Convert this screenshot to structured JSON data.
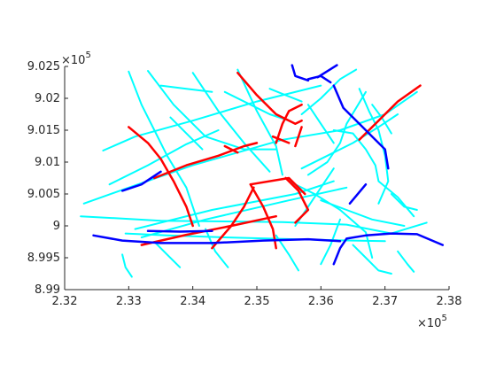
{
  "chart_data": {
    "type": "line",
    "title": "",
    "xlabel": "",
    "ylabel": "",
    "xlim": [
      232000,
      238000
    ],
    "ylim": [
      899000,
      902500
    ],
    "x_ticks": [
      232000,
      233000,
      234000,
      235000,
      236000,
      237000,
      238000
    ],
    "y_ticks": [
      899000,
      899500,
      900000,
      900500,
      901000,
      901500,
      902000,
      902500
    ],
    "x_tick_labels": [
      "2.32",
      "2.33",
      "2.34",
      "2.35",
      "2.36",
      "2.37",
      "2.38"
    ],
    "y_tick_labels": [
      "8.99",
      "8.995",
      "9",
      "9.005",
      "9.01",
      "9.015",
      "9.02",
      "9.025"
    ],
    "x_multiplier": {
      "base": "×10",
      "exp": "5"
    },
    "y_multiplier": {
      "base": "×10",
      "exp": "5"
    },
    "grid": false,
    "box": "open",
    "series": [
      {
        "color": "#00FFFF",
        "lines": [
          [
            [
              232250,
              900150
            ],
            [
              233500,
              900080
            ],
            [
              235400,
              900060
            ],
            [
              236400,
              900020
            ],
            [
              237100,
              899880
            ],
            [
              237650,
              900050
            ]
          ],
          [
            [
              232950,
              899880
            ],
            [
              233600,
              899850
            ],
            [
              234500,
              899820
            ],
            [
              235600,
              899790
            ],
            [
              236500,
              899770
            ],
            [
              237000,
              899760
            ]
          ],
          [
            [
              233100,
              899950
            ],
            [
              234300,
              900250
            ],
            [
              235600,
              900500
            ],
            [
              236200,
              900700
            ]
          ],
          [
            [
              233200,
              899820
            ],
            [
              234200,
              900100
            ],
            [
              235500,
              900400
            ],
            [
              236400,
              900600
            ]
          ],
          [
            [
              232300,
              900350
            ],
            [
              233000,
              900600
            ],
            [
              234000,
              900950
            ],
            [
              235400,
              901350
            ],
            [
              236300,
              901500
            ],
            [
              237000,
              901750
            ],
            [
              237500,
              902100
            ]
          ],
          [
            [
              232600,
              901180
            ],
            [
              233100,
              901400
            ],
            [
              234000,
              901650
            ],
            [
              235000,
              901950
            ],
            [
              236000,
              902200
            ]
          ],
          [
            [
              232700,
              900650
            ],
            [
              233300,
              900950
            ],
            [
              233900,
              901280
            ],
            [
              234400,
              901500
            ]
          ],
          [
            [
              233000,
              902420
            ],
            [
              233200,
              901900
            ],
            [
              233400,
              901500
            ],
            [
              233600,
              901100
            ],
            [
              233900,
              900600
            ],
            [
              234100,
              900000
            ]
          ],
          [
            [
              233300,
              902430
            ],
            [
              233700,
              901900
            ],
            [
              234200,
              901400
            ],
            [
              234800,
              901200
            ],
            [
              235300,
              901200
            ]
          ],
          [
            [
              234000,
              902400
            ],
            [
              234400,
              901800
            ],
            [
              234800,
              901300
            ],
            [
              235200,
              900850
            ]
          ],
          [
            [
              234700,
              902450
            ],
            [
              235000,
              901800
            ],
            [
              235300,
              901250
            ],
            [
              235400,
              900800
            ]
          ],
          [
            [
              235500,
              900700
            ],
            [
              235900,
              900500
            ],
            [
              236300,
              900250
            ],
            [
              236700,
              899900
            ],
            [
              236800,
              899500
            ]
          ],
          [
            [
              235700,
              900900
            ],
            [
              236100,
              901100
            ],
            [
              236500,
              901300
            ],
            [
              236900,
              901550
            ],
            [
              237200,
              901750
            ]
          ],
          [
            [
              236200,
              901500
            ],
            [
              236500,
              901450
            ],
            [
              236700,
              901200
            ],
            [
              236850,
              900950
            ],
            [
              236900,
              900700
            ],
            [
              237200,
              900450
            ],
            [
              237450,
              900150
            ]
          ],
          [
            [
              236000,
              900400
            ],
            [
              236400,
              900250
            ],
            [
              236800,
              900100
            ],
            [
              237300,
              900000
            ]
          ],
          [
            [
              235800,
              900800
            ],
            [
              236100,
              901000
            ],
            [
              236300,
              901300
            ],
            [
              236400,
              901600
            ],
            [
              236700,
              902100
            ]
          ],
          [
            [
              236600,
              902150
            ],
            [
              236750,
              901800
            ],
            [
              236900,
              901500
            ],
            [
              237000,
              901100
            ],
            [
              237050,
              900700
            ],
            [
              236900,
              900350
            ]
          ],
          [
            [
              235700,
              901750
            ],
            [
              236000,
              902000
            ],
            [
              236300,
              902300
            ],
            [
              236550,
              902450
            ]
          ],
          [
            [
              233400,
              899750
            ],
            [
              233600,
              899550
            ],
            [
              233800,
              899350
            ]
          ],
          [
            [
              234200,
              899950
            ],
            [
              234350,
              899600
            ],
            [
              234550,
              899350
            ]
          ],
          [
            [
              235300,
              899850
            ],
            [
              235500,
              899550
            ],
            [
              235650,
              899300
            ]
          ],
          [
            [
              236300,
              900100
            ],
            [
              236150,
              899700
            ],
            [
              236000,
              899400
            ]
          ],
          [
            [
              236500,
              899700
            ],
            [
              236700,
              899500
            ],
            [
              236900,
              899300
            ],
            [
              237100,
              899250
            ]
          ],
          [
            [
              237200,
              899600
            ],
            [
              237350,
              899400
            ],
            [
              237450,
              899280
            ]
          ],
          [
            [
              232900,
              899550
            ],
            [
              232950,
              899350
            ],
            [
              233050,
              899200
            ]
          ],
          [
            [
              233650,
              901700
            ],
            [
              233900,
              901450
            ],
            [
              234150,
              901200
            ]
          ],
          [
            [
              234500,
              902100
            ],
            [
              234900,
              901900
            ],
            [
              235200,
              901750
            ],
            [
              235500,
              901650
            ]
          ],
          [
            [
              235800,
              901900
            ],
            [
              236000,
              901600
            ],
            [
              236200,
              901300
            ]
          ],
          [
            [
              236200,
              900900
            ],
            [
              236000,
              900600
            ],
            [
              235800,
              900300
            ],
            [
              235600,
              900000
            ]
          ],
          [
            [
              236800,
              901900
            ],
            [
              236950,
              901700
            ],
            [
              237100,
              901450
            ]
          ],
          [
            [
              237100,
              900500
            ],
            [
              237300,
              900300
            ],
            [
              237500,
              900250
            ]
          ],
          [
            [
              233500,
              902200
            ],
            [
              233900,
              902150
            ],
            [
              234300,
              902100
            ]
          ],
          [
            [
              235200,
              902150
            ],
            [
              235450,
              902050
            ],
            [
              235700,
              901950
            ]
          ]
        ]
      },
      {
        "color": "#FF0000",
        "lines": [
          [
            [
              233000,
              901550
            ],
            [
              233300,
              901300
            ],
            [
              233500,
              901050
            ],
            [
              233700,
              900700
            ],
            [
              233900,
              900300
            ],
            [
              234000,
              900000
            ]
          ],
          [
            [
              233400,
              900750
            ],
            [
              233900,
              900950
            ],
            [
              234400,
              901100
            ],
            [
              234800,
              901250
            ],
            [
              235000,
              901300
            ]
          ],
          [
            [
              234700,
              902400
            ],
            [
              235000,
              902050
            ],
            [
              235300,
              901750
            ],
            [
              235600,
              901600
            ],
            [
              235700,
              901650
            ]
          ],
          [
            [
              235300,
              901300
            ],
            [
              235400,
              901600
            ],
            [
              235500,
              901800
            ],
            [
              235700,
              901900
            ]
          ],
          [
            [
              235450,
              900750
            ],
            [
              235650,
              900550
            ],
            [
              235800,
              900250
            ],
            [
              235600,
              900050
            ]
          ],
          [
            [
              234900,
              900650
            ],
            [
              235500,
              900750
            ],
            [
              235750,
              900500
            ]
          ],
          [
            [
              234300,
              899650
            ],
            [
              234600,
              900000
            ],
            [
              234800,
              900300
            ],
            [
              234950,
              900600
            ]
          ],
          [
            [
              234900,
              900650
            ],
            [
              235100,
              900300
            ],
            [
              235250,
              899950
            ],
            [
              235300,
              899650
            ]
          ],
          [
            [
              233200,
              899700
            ],
            [
              233900,
              899860
            ],
            [
              234600,
              900000
            ],
            [
              235300,
              900150
            ]
          ],
          [
            [
              236600,
              901350
            ],
            [
              236900,
              901650
            ],
            [
              237200,
              901950
            ],
            [
              237550,
              902200
            ]
          ],
          [
            [
              234500,
              901250
            ],
            [
              234700,
              901150
            ]
          ],
          [
            [
              235250,
              901400
            ],
            [
              235500,
              901300
            ]
          ],
          [
            [
              235600,
              901250
            ],
            [
              235700,
              901550
            ]
          ]
        ]
      },
      {
        "color": "#0000FF",
        "lines": [
          [
            [
              232450,
              899850
            ],
            [
              232900,
              899770
            ],
            [
              233500,
              899730
            ],
            [
              234300,
              899730
            ],
            [
              235100,
              899770
            ],
            [
              235800,
              899790
            ],
            [
              236300,
              899760
            ]
          ],
          [
            [
              236200,
              899400
            ],
            [
              236300,
              899650
            ],
            [
              236400,
              899800
            ],
            [
              236700,
              899850
            ],
            [
              237100,
              899880
            ],
            [
              237500,
              899870
            ],
            [
              237900,
              899700
            ]
          ],
          [
            [
              232900,
              900550
            ],
            [
              233200,
              900650
            ],
            [
              233500,
              900850
            ]
          ],
          [
            [
              233300,
              899920
            ],
            [
              233800,
              899910
            ],
            [
              234300,
              899920
            ]
          ],
          [
            [
              235800,
              902300
            ],
            [
              236000,
              902350
            ],
            [
              236150,
              902250
            ]
          ],
          [
            [
              235950,
              902330
            ],
            [
              236250,
              902520
            ]
          ],
          [
            [
              236200,
              902200
            ],
            [
              236350,
              901850
            ],
            [
              236600,
              901600
            ],
            [
              236800,
              901400
            ],
            [
              237000,
              901200
            ],
            [
              237050,
              900900
            ]
          ],
          [
            [
              236700,
              900650
            ],
            [
              236450,
              900350
            ]
          ],
          [
            [
              235550,
              902520
            ],
            [
              235600,
              902350
            ],
            [
              235800,
              902280
            ]
          ]
        ]
      }
    ]
  }
}
